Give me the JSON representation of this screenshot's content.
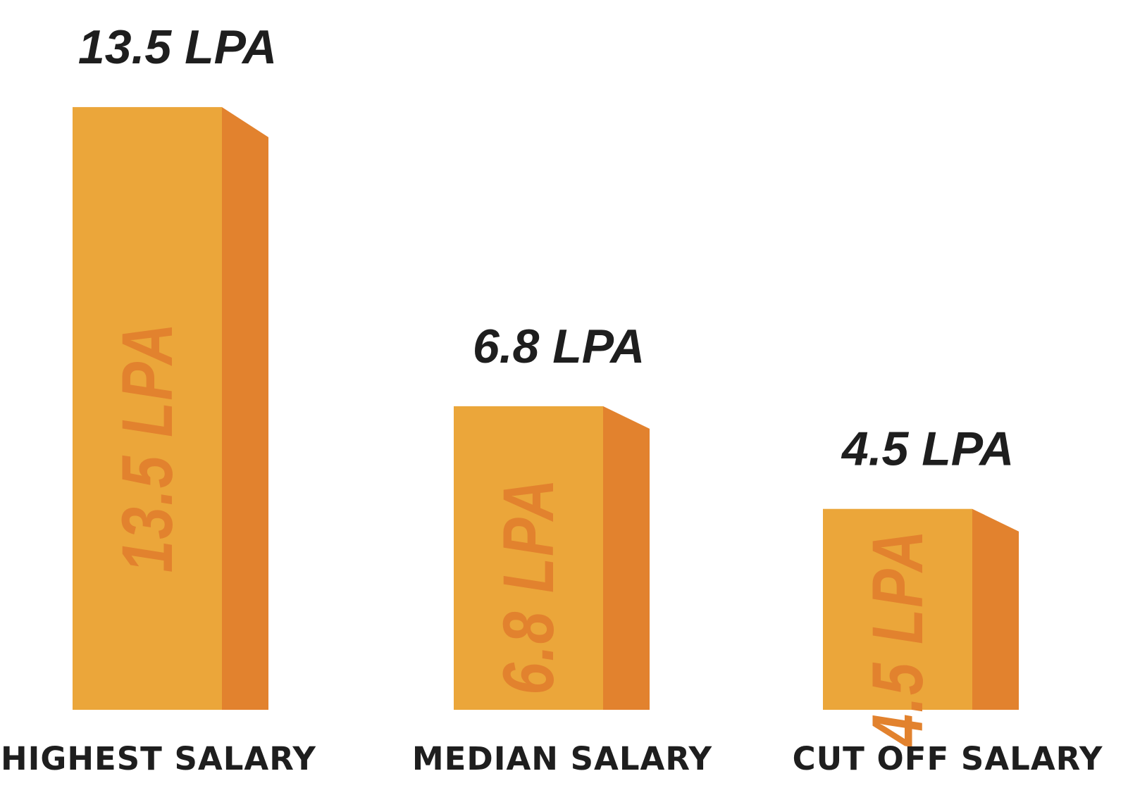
{
  "chart_data": {
    "type": "bar",
    "title": "",
    "xlabel": "",
    "ylabel": "",
    "unit": "LPA",
    "categories": [
      "HIGHEST SALARY",
      "MEDIAN SALARY",
      "CUT OFF SALARY"
    ],
    "values": [
      13.5,
      6.8,
      4.5
    ],
    "value_labels": [
      "13.5 LPA",
      "6.8 LPA",
      "4.5 LPA"
    ],
    "grid": false,
    "legend": "none"
  },
  "colors": {
    "bar_front": "#EBA63A",
    "bar_side": "#E2822E",
    "bar_inner_text": "#E2822E",
    "text": "#1E1E1E",
    "background": "#FFFFFF"
  }
}
